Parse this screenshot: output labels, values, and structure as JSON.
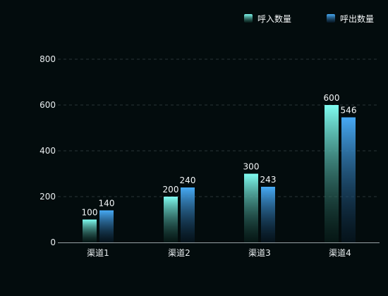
{
  "chart_data": {
    "type": "bar",
    "categories": [
      "渠道1",
      "渠道2",
      "渠道3",
      "渠道4"
    ],
    "series": [
      {
        "name": "呼入数量",
        "values": [
          100,
          200,
          300,
          600
        ],
        "color_top": "#7ffcf0",
        "color_bottom": "#0b2a22"
      },
      {
        "name": "呼出数量",
        "values": [
          140,
          240,
          243,
          546
        ],
        "color_top": "#47aaf5",
        "color_bottom": "#0a1f33"
      }
    ],
    "ylim": [
      0,
      800
    ],
    "yticks": [
      0,
      200,
      400,
      600,
      800
    ],
    "grid": true,
    "legend_position": "top-right",
    "data_labels": true
  },
  "colors": {
    "background": "#030c0d",
    "text": "#f3f6f7",
    "grid": "#2a3336",
    "axis": "#9aa3a6"
  }
}
